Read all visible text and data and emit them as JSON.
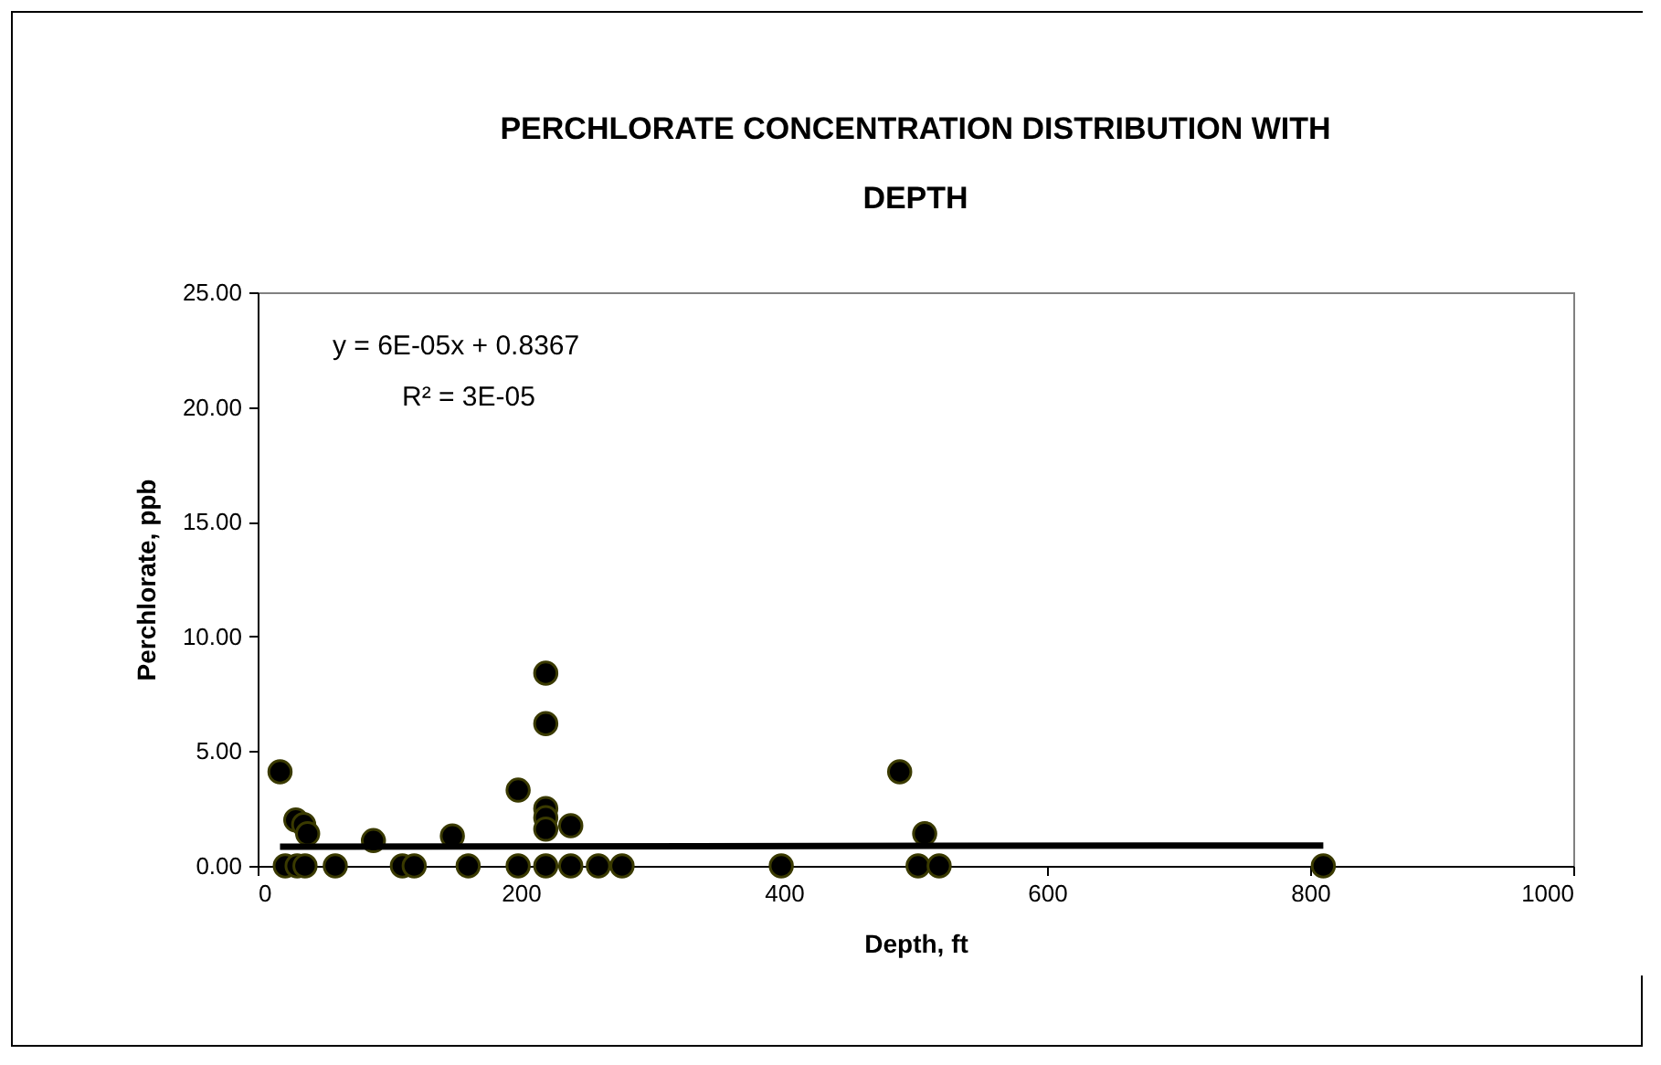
{
  "chart_data": {
    "type": "scatter",
    "title": "PERCHLORATE CONCENTRATION DISTRIBUTION WITH DEPTH",
    "xlabel": "Depth, ft",
    "ylabel": "Perchlorate, ppb",
    "xlim": [
      0,
      1000
    ],
    "xticks": [
      0,
      200,
      400,
      600,
      800,
      1000
    ],
    "ylim": [
      0,
      25
    ],
    "yticks": [
      {
        "value": 0,
        "label": "0.00"
      },
      {
        "value": 5,
        "label": "5.00"
      },
      {
        "value": 10,
        "label": "10.00"
      },
      {
        "value": 15,
        "label": "15.00"
      },
      {
        "value": 20,
        "label": "20.00"
      },
      {
        "value": 25,
        "label": "25.00"
      }
    ],
    "grid": false,
    "marker": "circle",
    "annotations": [
      "y = 6E-05x + 0.8367",
      "R² = 3E-05"
    ],
    "series": [
      {
        "color": "#000000",
        "x": [
          17,
          21,
          30,
          36,
          29,
          35,
          38,
          59,
          88,
          110,
          119,
          148,
          160,
          198,
          198,
          219,
          219,
          219,
          219,
          219,
          219,
          238,
          238,
          259,
          277,
          398,
          488,
          507,
          502,
          518,
          810
        ],
        "values": [
          4.1,
          0,
          0,
          0,
          2.0,
          1.8,
          1.4,
          0,
          1.1,
          0,
          0,
          1.3,
          0,
          3.3,
          0,
          8.4,
          6.2,
          2.5,
          2.1,
          1.6,
          0,
          1.75,
          0,
          0,
          0,
          0,
          4.1,
          1.4,
          0,
          0,
          0
        ]
      },
      {
        "type": "line",
        "marker": "none",
        "color": "#000000",
        "x": [
          17,
          810
        ],
        "values": [
          0.84,
          0.89
        ]
      }
    ]
  }
}
